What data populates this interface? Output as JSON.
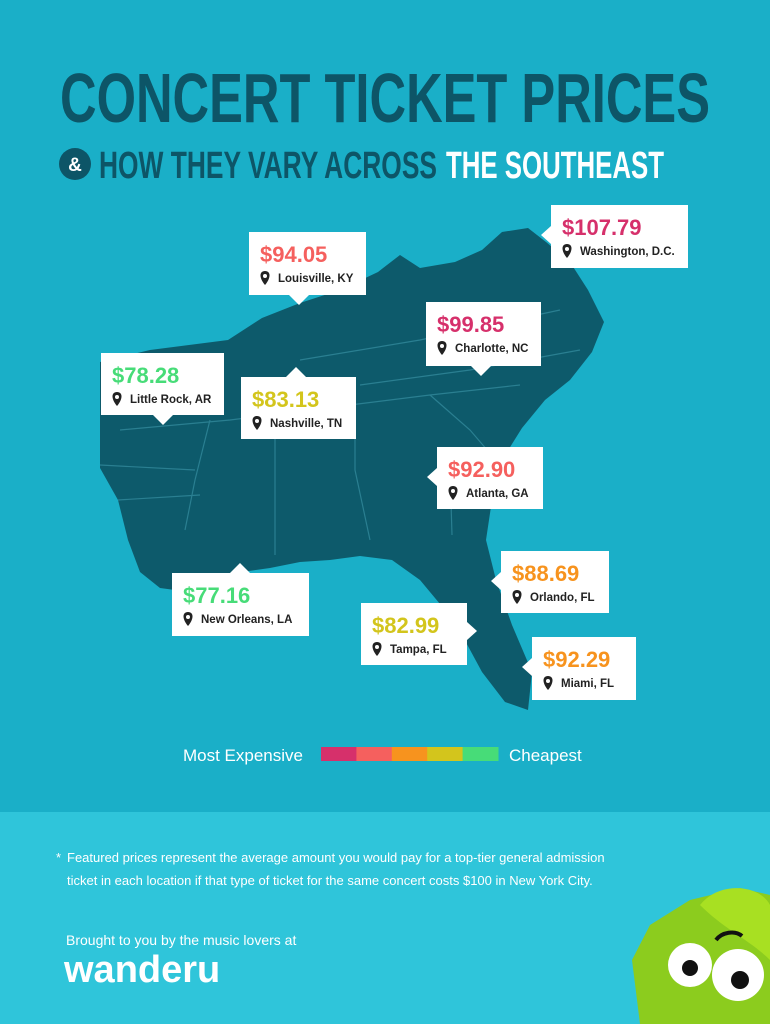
{
  "header": {
    "title": "CONCERT TICKET PRICES",
    "subtitle_amp": "&",
    "subtitle_main": "HOW THEY VARY ACROSS",
    "subtitle_emph": "THE SOUTHEAST"
  },
  "callouts": [
    {
      "price": "$107.79",
      "city": "Washington, D.C.",
      "color": "#d6306b"
    },
    {
      "price": "$94.05",
      "city": "Louisville, KY",
      "color": "#f5605e"
    },
    {
      "price": "$99.85",
      "city": "Charlotte, NC",
      "color": "#d6306b"
    },
    {
      "price": "$78.28",
      "city": "Little Rock, AR",
      "color": "#47dc78"
    },
    {
      "price": "$83.13",
      "city": "Nashville, TN",
      "color": "#d3c51c"
    },
    {
      "price": "$92.90",
      "city": "Atlanta, GA",
      "color": "#f5605e"
    },
    {
      "price": "$88.69",
      "city": "Orlando, FL",
      "color": "#f7931e"
    },
    {
      "price": "$77.16",
      "city": "New Orleans, LA",
      "color": "#47dc78"
    },
    {
      "price": "$82.99",
      "city": "Tampa, FL",
      "color": "#d3c51c"
    },
    {
      "price": "$92.29",
      "city": "Miami, FL",
      "color": "#f7931e"
    }
  ],
  "legend": {
    "high_label": "Most Expensive",
    "low_label": "Cheapest",
    "colors": [
      "#d6306b",
      "#f5605e",
      "#f7931e",
      "#d3c51c",
      "#47dc78"
    ]
  },
  "footer": {
    "note_marker": "*",
    "note_line1": "Featured prices represent the average amount you would pay for a top-tier general admission",
    "note_line2": "ticket in each location if that type of ticket for the same concert costs $100 in New York City.",
    "credit": "Brought to you by the music lovers at",
    "brand": "wanderu"
  }
}
